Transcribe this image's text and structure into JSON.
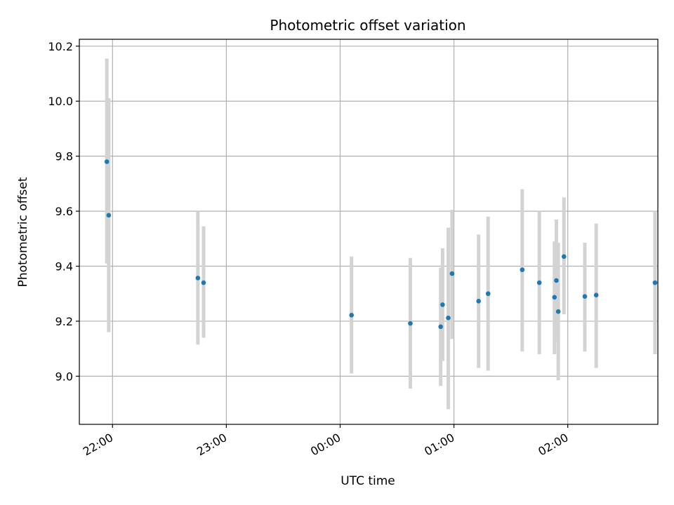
{
  "chart_data": {
    "type": "scatter",
    "title": "Photometric offset variation",
    "xlabel": "UTC time",
    "ylabel": "Photometric offset",
    "x_tick_labels": [
      "22:00",
      "23:00",
      "00:00",
      "01:00",
      "02:00"
    ],
    "x_ticks_minutes": [
      0,
      60,
      120,
      180,
      240
    ],
    "y_ticks": [
      9.0,
      9.2,
      9.4,
      9.6,
      9.8,
      10.0,
      10.2
    ],
    "xlim_minutes": [
      -17.5,
      287.5
    ],
    "ylim": [
      8.825,
      10.225
    ],
    "grid": true,
    "colors": {
      "point": "#1f77b4",
      "errorbar": "#d3d3d3",
      "grid": "#b0b0b0"
    },
    "points": [
      {
        "t": -3,
        "y": 9.78,
        "lo": 9.41,
        "hi": 10.155
      },
      {
        "t": -2,
        "y": 9.585,
        "lo": 9.16,
        "hi": 10.01
      },
      {
        "t": 45,
        "y": 9.357,
        "lo": 9.115,
        "hi": 9.6
      },
      {
        "t": 48,
        "y": 9.34,
        "lo": 9.14,
        "hi": 9.545
      },
      {
        "t": 126,
        "y": 9.222,
        "lo": 9.01,
        "hi": 9.435
      },
      {
        "t": 157,
        "y": 9.192,
        "lo": 8.955,
        "hi": 9.43
      },
      {
        "t": 173,
        "y": 9.18,
        "lo": 8.965,
        "hi": 9.395
      },
      {
        "t": 174,
        "y": 9.26,
        "lo": 9.055,
        "hi": 9.465
      },
      {
        "t": 177,
        "y": 9.212,
        "lo": 8.88,
        "hi": 9.54
      },
      {
        "t": 179,
        "y": 9.373,
        "lo": 9.135,
        "hi": 9.605
      },
      {
        "t": 193,
        "y": 9.273,
        "lo": 9.03,
        "hi": 9.515
      },
      {
        "t": 198,
        "y": 9.3,
        "lo": 9.02,
        "hi": 9.58
      },
      {
        "t": 216,
        "y": 9.387,
        "lo": 9.09,
        "hi": 9.68
      },
      {
        "t": 225,
        "y": 9.34,
        "lo": 9.08,
        "hi": 9.6
      },
      {
        "t": 233,
        "y": 9.287,
        "lo": 9.08,
        "hi": 9.49
      },
      {
        "t": 234,
        "y": 9.348,
        "lo": 9.125,
        "hi": 9.57
      },
      {
        "t": 235,
        "y": 9.235,
        "lo": 8.985,
        "hi": 9.485
      },
      {
        "t": 238,
        "y": 9.435,
        "lo": 9.225,
        "hi": 9.65
      },
      {
        "t": 249,
        "y": 9.29,
        "lo": 9.09,
        "hi": 9.485
      },
      {
        "t": 255,
        "y": 9.295,
        "lo": 9.03,
        "hi": 9.555
      },
      {
        "t": 286,
        "y": 9.34,
        "lo": 9.08,
        "hi": 9.6
      }
    ]
  }
}
